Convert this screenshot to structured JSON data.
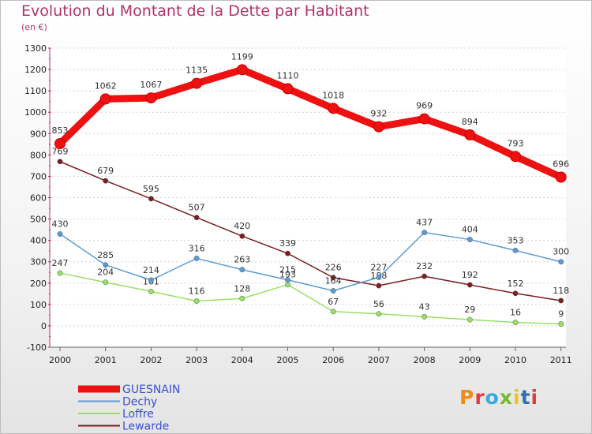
{
  "chart_data": {
    "type": "line",
    "title": "Evolution du Montant de la Dette par Habitant",
    "subtitle": "(en €)",
    "x": [
      "2000",
      "2001",
      "2002",
      "2003",
      "2004",
      "2005",
      "2006",
      "2007",
      "2008",
      "2009",
      "2010",
      "2011"
    ],
    "ylim": [
      -100,
      1300
    ],
    "yticks": [
      -100,
      0,
      100,
      200,
      300,
      400,
      500,
      600,
      700,
      800,
      900,
      1000,
      1100,
      1200,
      1300
    ],
    "grid": "horizontal",
    "legend_position": "bottom-left",
    "series": [
      {
        "name": "GUESNAIN",
        "color": "#ee1111",
        "values": [
          853,
          1062,
          1067,
          1135,
          1199,
          1110,
          1018,
          932,
          969,
          894,
          793,
          696
        ]
      },
      {
        "name": "Dechy",
        "color": "#5b9bd5",
        "values": [
          430,
          285,
          214,
          316,
          263,
          215,
          164,
          227,
          437,
          404,
          353,
          300
        ]
      },
      {
        "name": "Loffre",
        "color": "#99e066",
        "values": [
          247,
          204,
          161,
          116,
          128,
          193,
          67,
          56,
          43,
          29,
          16,
          9
        ]
      },
      {
        "name": "Lewarde",
        "color": "#7a1e1e",
        "values": [
          769,
          679,
          595,
          507,
          420,
          339,
          226,
          188,
          232,
          192,
          152,
          118
        ]
      }
    ]
  },
  "logo": {
    "text": "Proxiti",
    "colors": [
      "#f08a1c",
      "#e23c3c",
      "#36a9e1",
      "#78b833",
      "#f0c31c",
      "#2f6fb7",
      "#e23c3c"
    ]
  }
}
